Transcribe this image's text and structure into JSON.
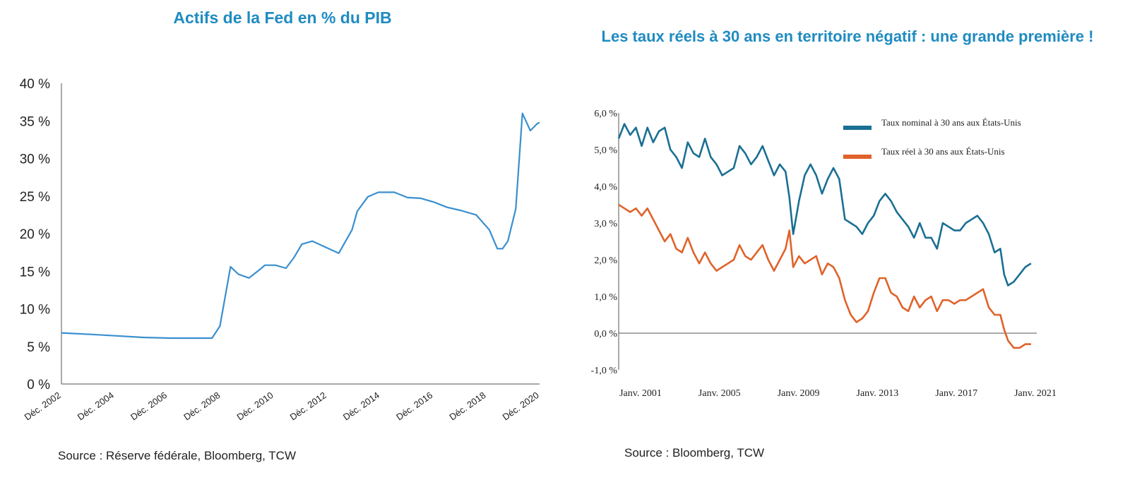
{
  "chart_data": [
    {
      "type": "line",
      "title": "Actifs de la Fed en % du PIB",
      "source": "Source : Réserve fédérale, Bloomberg, TCW",
      "y_tick_labels": [
        "0 %",
        "5 %",
        "10 %",
        "15 %",
        "20 %",
        "25 %",
        "30 %",
        "35 %",
        "40 %"
      ],
      "x_tick_labels": [
        "Déc. 2002",
        "Déc. 2004",
        "Déc. 2006",
        "Déc. 2008",
        "Déc. 2010",
        "Déc. 2012",
        "Déc. 2014",
        "Déc. 2016",
        "Déc. 2018",
        "Déc. 2020"
      ],
      "ylim": [
        0,
        40
      ],
      "xlim": [
        2002.9,
        2021.0
      ],
      "grid": false,
      "color": "#3a8fcf",
      "series": [
        {
          "x": [
            2002.9,
            2004.0,
            2005.0,
            2006.0,
            2007.0,
            2007.6,
            2008.4,
            2008.6,
            2008.9,
            2009.3,
            2009.6,
            2010.0,
            2010.4,
            2010.6,
            2011.0,
            2011.4,
            2011.7,
            2012.0,
            2012.4,
            2012.9,
            2013.4,
            2013.9,
            2014.1,
            2014.5,
            2014.9,
            2015.5,
            2016.0,
            2016.5,
            2017.0,
            2017.5,
            2018.0,
            2018.6,
            2019.1,
            2019.4,
            2019.6,
            2019.8,
            2020.1,
            2020.35,
            2020.65,
            2020.9,
            2021.0
          ],
          "values": [
            6.8,
            6.6,
            6.4,
            6.2,
            6.1,
            6.1,
            6.1,
            6.1,
            7.7,
            15.6,
            14.6,
            14.1,
            15.2,
            15.8,
            15.8,
            15.4,
            16.8,
            18.6,
            19.0,
            18.2,
            17.4,
            20.5,
            23.0,
            24.9,
            25.5,
            25.5,
            24.8,
            24.7,
            24.2,
            23.5,
            23.1,
            22.5,
            20.5,
            18.0,
            18.0,
            19.0,
            23.3,
            36.0,
            33.7,
            34.6,
            34.8
          ]
        }
      ]
    },
    {
      "type": "line",
      "title": "Les taux réels à 30 ans en territoire négatif : une grande première !",
      "source": "Source : Bloomberg, TCW",
      "y_tick_labels": [
        "-1,0 %",
        "0,0 %",
        "1,0 %",
        "2,0 %",
        "3,0 %",
        "4,0 %",
        "5,0 %",
        "6,0 %"
      ],
      "x_tick_labels": [
        "Janv. 2001",
        "Janv. 2005",
        "Janv. 2009",
        "Janv. 2013",
        "Janv. 2017",
        "Janv. 2021"
      ],
      "ylim": [
        -1,
        6
      ],
      "xlim": [
        2000.0,
        2021.8
      ],
      "grid": false,
      "zero_line": true,
      "legend_position": "top-right",
      "series": [
        {
          "name": "Taux nominal à 30 ans aux États-Unis",
          "color": "#1a6f94",
          "x": [
            2000.0,
            2000.3,
            2000.6,
            2000.9,
            2001.2,
            2001.5,
            2001.8,
            2002.1,
            2002.4,
            2002.7,
            2003.0,
            2003.3,
            2003.6,
            2003.9,
            2004.2,
            2004.5,
            2004.8,
            2005.1,
            2005.4,
            2005.7,
            2006.0,
            2006.3,
            2006.6,
            2006.9,
            2007.2,
            2007.5,
            2007.8,
            2008.1,
            2008.4,
            2008.7,
            2008.9,
            2009.1,
            2009.4,
            2009.7,
            2010.0,
            2010.3,
            2010.6,
            2010.9,
            2011.2,
            2011.5,
            2011.8,
            2012.1,
            2012.4,
            2012.7,
            2013.0,
            2013.3,
            2013.6,
            2013.9,
            2014.2,
            2014.5,
            2014.8,
            2015.1,
            2015.4,
            2015.7,
            2016.0,
            2016.3,
            2016.6,
            2016.9,
            2017.2,
            2017.5,
            2017.8,
            2018.1,
            2018.4,
            2018.7,
            2019.0,
            2019.3,
            2019.6,
            2019.9,
            2020.1,
            2020.3,
            2020.6,
            2020.9,
            2021.2,
            2021.5
          ],
          "values": [
            5.3,
            5.7,
            5.4,
            5.6,
            5.1,
            5.6,
            5.2,
            5.5,
            5.6,
            5.0,
            4.8,
            4.5,
            5.2,
            4.9,
            4.8,
            5.3,
            4.8,
            4.6,
            4.3,
            4.4,
            4.5,
            5.1,
            4.9,
            4.6,
            4.8,
            5.1,
            4.7,
            4.3,
            4.6,
            4.4,
            3.7,
            2.7,
            3.6,
            4.3,
            4.6,
            4.3,
            3.8,
            4.2,
            4.5,
            4.2,
            3.1,
            3.0,
            2.9,
            2.7,
            3.0,
            3.2,
            3.6,
            3.8,
            3.6,
            3.3,
            3.1,
            2.9,
            2.6,
            3.0,
            2.6,
            2.6,
            2.3,
            3.0,
            2.9,
            2.8,
            2.8,
            3.0,
            3.1,
            3.2,
            3.0,
            2.7,
            2.2,
            2.3,
            1.6,
            1.3,
            1.4,
            1.6,
            1.8,
            1.9
          ]
        },
        {
          "name": "Taux réel à 30 ans aux États-Unis",
          "color": "#e0622a",
          "x": [
            2000.0,
            2000.3,
            2000.6,
            2000.9,
            2001.2,
            2001.5,
            2001.8,
            2002.1,
            2002.4,
            2002.7,
            2003.0,
            2003.3,
            2003.6,
            2003.9,
            2004.2,
            2004.5,
            2004.8,
            2005.1,
            2005.4,
            2005.7,
            2006.0,
            2006.3,
            2006.6,
            2006.9,
            2007.2,
            2007.5,
            2007.8,
            2008.1,
            2008.4,
            2008.7,
            2008.9,
            2009.1,
            2009.4,
            2009.7,
            2010.0,
            2010.3,
            2010.6,
            2010.9,
            2011.2,
            2011.5,
            2011.8,
            2012.1,
            2012.4,
            2012.7,
            2013.0,
            2013.3,
            2013.6,
            2013.9,
            2014.2,
            2014.5,
            2014.8,
            2015.1,
            2015.4,
            2015.7,
            2016.0,
            2016.3,
            2016.6,
            2016.9,
            2017.2,
            2017.5,
            2017.8,
            2018.1,
            2018.4,
            2018.7,
            2019.0,
            2019.3,
            2019.6,
            2019.9,
            2020.1,
            2020.3,
            2020.6,
            2020.9,
            2021.2,
            2021.5
          ],
          "values": [
            3.5,
            3.4,
            3.3,
            3.4,
            3.2,
            3.4,
            3.1,
            2.8,
            2.5,
            2.7,
            2.3,
            2.2,
            2.6,
            2.2,
            1.9,
            2.2,
            1.9,
            1.7,
            1.8,
            1.9,
            2.0,
            2.4,
            2.1,
            2.0,
            2.2,
            2.4,
            2.0,
            1.7,
            2.0,
            2.3,
            2.8,
            1.8,
            2.1,
            1.9,
            2.0,
            2.1,
            1.6,
            1.9,
            1.8,
            1.5,
            0.9,
            0.5,
            0.3,
            0.4,
            0.6,
            1.1,
            1.5,
            1.5,
            1.1,
            1.0,
            0.7,
            0.6,
            1.0,
            0.7,
            0.9,
            1.0,
            0.6,
            0.9,
            0.9,
            0.8,
            0.9,
            0.9,
            1.0,
            1.1,
            1.2,
            0.7,
            0.5,
            0.5,
            0.1,
            -0.2,
            -0.4,
            -0.4,
            -0.3,
            -0.3
          ]
        }
      ]
    }
  ]
}
